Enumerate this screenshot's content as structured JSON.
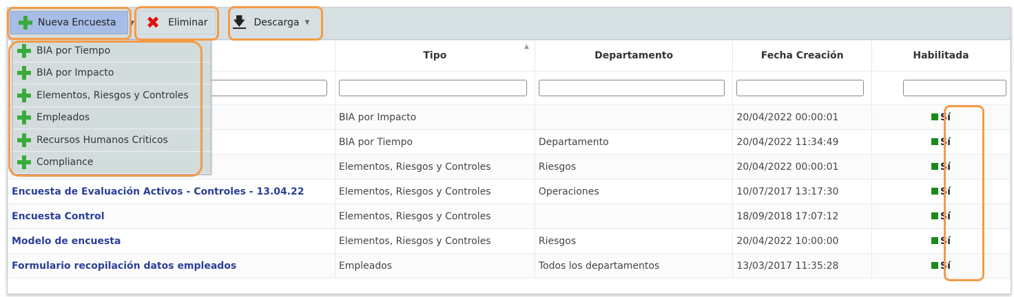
{
  "toolbar": {
    "new_label": "Nueva Encuesta",
    "delete_label": "Eliminar",
    "download_label": "Descarga"
  },
  "new_menu": [
    "BIA por Tiempo",
    "BIA por Impacto",
    "Elementos, Riesgos y Controles",
    "Empleados",
    "Recursos Humanos Criticos",
    "Compliance"
  ],
  "table": {
    "headers": [
      "",
      "Tipo",
      "Departamento",
      "Fecha Creación",
      "Habilitada"
    ],
    "rows": [
      {
        "name": "",
        "tipo": "BIA por Impacto",
        "dep": "",
        "fecha": "20/04/2022 00:00:01",
        "hab": "Sí"
      },
      {
        "name": "",
        "tipo": "BIA por Tiempo",
        "dep": "Departamento",
        "fecha": "20/04/2022 11:34:49",
        "hab": "Sí"
      },
      {
        "name": "",
        "tipo": "Elementos, Riesgos y Controles",
        "dep": "Riesgos",
        "fecha": "20/04/2022 00:00:01",
        "hab": "Sí"
      },
      {
        "name": "Encuesta de Evaluación Activos - Controles - 13.04.22",
        "tipo": "Elementos, Riesgos y Controles",
        "dep": "Operaciones",
        "fecha": "10/07/2017 13:17:30",
        "hab": "Sí"
      },
      {
        "name": "Encuesta Control",
        "tipo": "Elementos, Riesgos y Controles",
        "dep": "",
        "fecha": "18/09/2018 17:07:12",
        "hab": "Sí"
      },
      {
        "name": "Modelo de encuesta",
        "tipo": "Elementos, Riesgos y Controles",
        "dep": "Riesgos",
        "fecha": "20/04/2022 10:00:00",
        "hab": "Sí"
      },
      {
        "name": "Formulario recopilación datos empleados",
        "tipo": "Empleados",
        "dep": "Todos los departamentos",
        "fecha": "13/03/2017 11:35:28",
        "hab": "Sí"
      }
    ]
  },
  "colors": {
    "highlight": "#f59a45",
    "enabled": "#1a8a1a",
    "link": "#2a3f97"
  }
}
